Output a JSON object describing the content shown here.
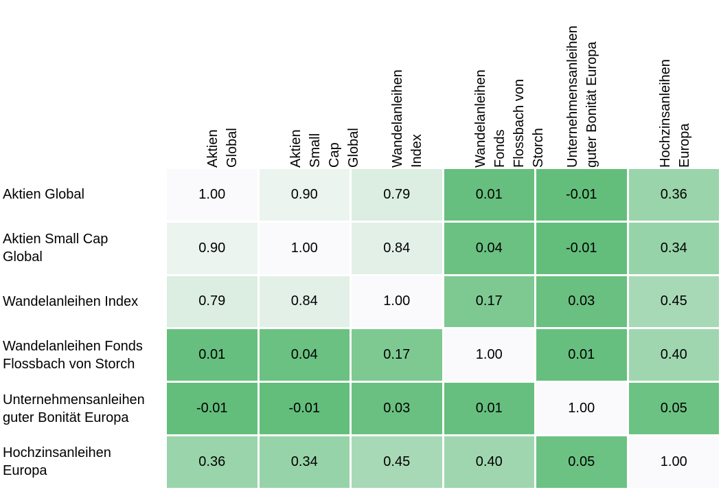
{
  "chart_data": {
    "type": "heatmap",
    "title": "",
    "rows": [
      "Aktien Global",
      "Aktien Small Cap\nGlobal",
      "Wandelanleihen Index",
      "Wandelanleihen Fonds\nFlossbach von Storch",
      "Unternehmensanleihen\nguter Bonität Europa",
      "Hochzinsanleihen\nEuropa"
    ],
    "columns": [
      "Aktien Global",
      "Aktien Small Cap\nGlobal",
      "Wandelanleihen Index",
      "Wandelanleihen Fonds\nFlossbach von Storch",
      "Unternehmensanleihen\nguter Bonität Europa",
      "Hochzinsanleihen\nEuropa"
    ],
    "values": [
      [
        1.0,
        0.9,
        0.79,
        0.01,
        -0.01,
        0.36
      ],
      [
        0.9,
        1.0,
        0.84,
        0.04,
        -0.01,
        0.34
      ],
      [
        0.79,
        0.84,
        1.0,
        0.17,
        0.03,
        0.45
      ],
      [
        0.01,
        0.04,
        0.17,
        1.0,
        0.01,
        0.4
      ],
      [
        -0.01,
        -0.01,
        0.03,
        0.01,
        1.0,
        0.05
      ],
      [
        0.36,
        0.34,
        0.45,
        0.4,
        0.05,
        1.0
      ]
    ],
    "display_values": [
      [
        "1.00",
        "0.90",
        "0.79",
        "0.01",
        "-0.01",
        "0.36"
      ],
      [
        "0.90",
        "1.00",
        "0.84",
        "0.04",
        "-0.01",
        "0.34"
      ],
      [
        "0.79",
        "0.84",
        "1.00",
        "0.17",
        "0.03",
        "0.45"
      ],
      [
        "0.01",
        "0.04",
        "0.17",
        "1.00",
        "0.01",
        "0.40"
      ],
      [
        "-0.01",
        "-0.01",
        "0.03",
        "0.01",
        "1.00",
        "0.05"
      ],
      [
        "0.36",
        "0.34",
        "0.45",
        "0.40",
        "0.05",
        "1.00"
      ]
    ],
    "color_scale": {
      "low": "#63be7b",
      "high": "#fafafc"
    },
    "value_range": [
      -0.01,
      1.0
    ],
    "grid": false,
    "legend": "none"
  }
}
